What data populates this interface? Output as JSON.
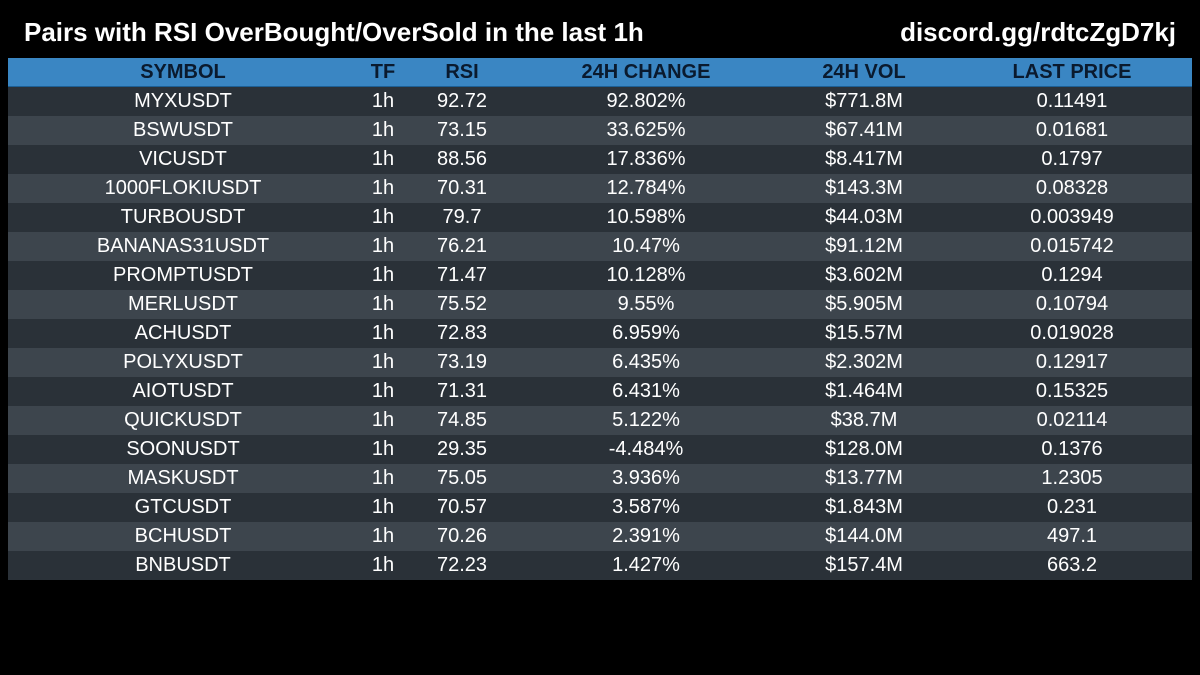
{
  "header": {
    "title": "Pairs with RSI OverBought/OverSold in the last 1h",
    "link": "discord.gg/rdtcZgD7kj"
  },
  "colors": {
    "background": "#000000",
    "header_row": "#3a86c3",
    "row_odd": "#2a3138",
    "row_even": "#3d454d",
    "text": "#ffffff"
  },
  "chart_data": {
    "type": "table",
    "columns": [
      "SYMBOL",
      "TF",
      "RSI",
      "24H CHANGE",
      "24H VOL",
      "LAST PRICE"
    ],
    "rows": [
      [
        "MYXUSDT",
        "1h",
        "92.72",
        "92.802%",
        "$771.8M",
        "0.11491"
      ],
      [
        "BSWUSDT",
        "1h",
        "73.15",
        "33.625%",
        "$67.41M",
        "0.01681"
      ],
      [
        "VICUSDT",
        "1h",
        "88.56",
        "17.836%",
        "$8.417M",
        "0.1797"
      ],
      [
        "1000FLOKIUSDT",
        "1h",
        "70.31",
        "12.784%",
        "$143.3M",
        "0.08328"
      ],
      [
        "TURBOUSDT",
        "1h",
        "79.7",
        "10.598%",
        "$44.03M",
        "0.003949"
      ],
      [
        "BANANAS31USDT",
        "1h",
        "76.21",
        "10.47%",
        "$91.12M",
        "0.015742"
      ],
      [
        "PROMPTUSDT",
        "1h",
        "71.47",
        "10.128%",
        "$3.602M",
        "0.1294"
      ],
      [
        "MERLUSDT",
        "1h",
        "75.52",
        "9.55%",
        "$5.905M",
        "0.10794"
      ],
      [
        "ACHUSDT",
        "1h",
        "72.83",
        "6.959%",
        "$15.57M",
        "0.019028"
      ],
      [
        "POLYXUSDT",
        "1h",
        "73.19",
        "6.435%",
        "$2.302M",
        "0.12917"
      ],
      [
        "AIOTUSDT",
        "1h",
        "71.31",
        "6.431%",
        "$1.464M",
        "0.15325"
      ],
      [
        "QUICKUSDT",
        "1h",
        "74.85",
        "5.122%",
        "$38.7M",
        "0.02114"
      ],
      [
        "SOONUSDT",
        "1h",
        "29.35",
        "-4.484%",
        "$128.0M",
        "0.1376"
      ],
      [
        "MASKUSDT",
        "1h",
        "75.05",
        "3.936%",
        "$13.77M",
        "1.2305"
      ],
      [
        "GTCUSDT",
        "1h",
        "70.57",
        "3.587%",
        "$1.843M",
        "0.231"
      ],
      [
        "BCHUSDT",
        "1h",
        "70.26",
        "2.391%",
        "$144.0M",
        "497.1"
      ],
      [
        "BNBUSDT",
        "1h",
        "72.23",
        "1.427%",
        "$157.4M",
        "663.2"
      ]
    ]
  }
}
